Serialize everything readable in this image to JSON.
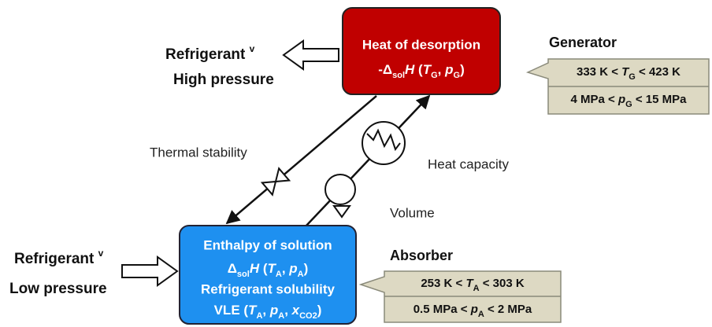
{
  "generator": {
    "label": "Generator",
    "box": {
      "title": "Heat of desorption",
      "formula": [
        "-Δ",
        "sol",
        "H",
        " (",
        "T",
        "G",
        ", ",
        "p",
        "G",
        ")"
      ]
    },
    "conditions": [
      [
        "333 K < ",
        "T",
        "G",
        " < 423 K"
      ],
      [
        "4 MPa < ",
        "p",
        "G",
        " < 15 MPa"
      ]
    ]
  },
  "high_side": {
    "label": [
      "Refrigerant ",
      "v"
    ],
    "pressure": "High pressure"
  },
  "absorber": {
    "label": "Absorber",
    "box": {
      "title": "Enthalpy of solution",
      "formula": [
        "Δ",
        "sol",
        "H",
        " (",
        "T",
        "A",
        ", ",
        "p",
        "A",
        ")"
      ],
      "solubility": "Refrigerant solubility",
      "vle": [
        "VLE (",
        "T",
        "A",
        ", ",
        "p",
        "A",
        ", ",
        "x",
        "CO2",
        ")"
      ]
    },
    "conditions": [
      [
        "253 K < ",
        "T",
        "A",
        " < 303 K"
      ],
      [
        "0.5 MPa < ",
        "p",
        "A",
        " < 2 MPa"
      ]
    ]
  },
  "low_side": {
    "label": [
      "Refrigerant ",
      "v"
    ],
    "pressure": "Low pressure"
  },
  "properties": {
    "thermal_stability": "Thermal stability",
    "heat_capacity": "Heat capacity",
    "volume": "Volume"
  }
}
